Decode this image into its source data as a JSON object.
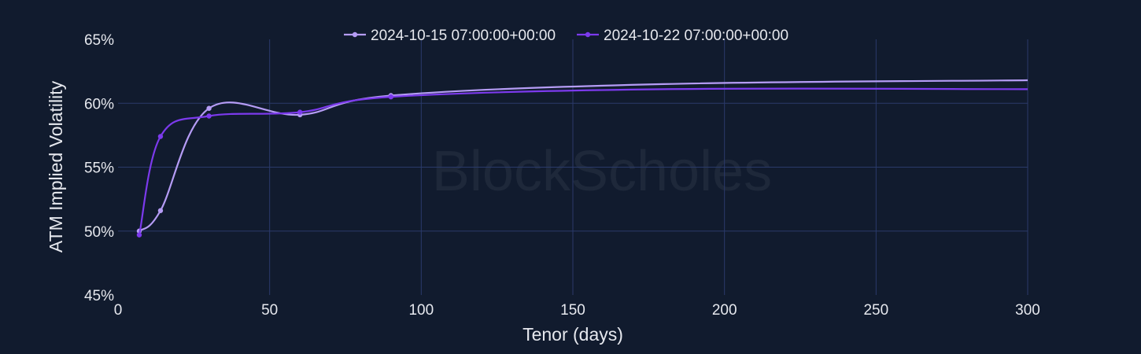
{
  "chart_data": {
    "type": "line",
    "xlabel": "Tenor (days)",
    "ylabel": "ATM Implied Volatility",
    "xlim": [
      0,
      300
    ],
    "ylim": [
      45,
      65
    ],
    "x_ticks": [
      0,
      50,
      100,
      150,
      200,
      250,
      300
    ],
    "y_ticks": [
      45,
      50,
      55,
      60,
      65
    ],
    "y_tick_labels": [
      "45%",
      "50%",
      "55%",
      "60%",
      "65%"
    ],
    "grid": true,
    "legend_position": "top-center",
    "watermark": "BlockScholes",
    "series": [
      {
        "name": "2024-10-15 07:00:00+00:00",
        "color": "#b59cf5",
        "x": [
          7,
          14,
          30,
          60,
          90,
          180,
          300
        ],
        "y": [
          50.0,
          51.6,
          59.6,
          59.1,
          60.6,
          61.5,
          61.8
        ]
      },
      {
        "name": "2024-10-22 07:00:00+00:00",
        "color": "#7c3aed",
        "x": [
          7,
          14,
          30,
          60,
          90,
          180,
          300
        ],
        "y": [
          49.7,
          57.4,
          59.0,
          59.3,
          60.5,
          61.1,
          61.1
        ]
      }
    ]
  }
}
